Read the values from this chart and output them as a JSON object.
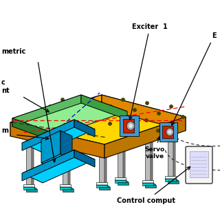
{
  "bg_color": "#ffffff",
  "labels": {
    "exciter1": "Exciter  1",
    "exciter2": "E",
    "servo_valve": "Servo\nvalve",
    "control_computer": "Control comput",
    "asymmetric": "metric",
    "ec_mount": "c\nnt",
    "frame": "m"
  },
  "colors": {
    "table_top_yellow": "#FFD700",
    "table_side_orange": "#FFA500",
    "table_side_dark": "#E08800",
    "table_left_dark": "#CC7700",
    "platform_green_top": "#90EE90",
    "platform_green_side": "#5DBB63",
    "platform_green_right": "#3DA043",
    "col_blue_light": "#00CFFF",
    "col_blue_mid": "#0099CC",
    "col_blue_dark": "#006699",
    "leg_gray": "#BBBBBB",
    "leg_dark": "#888888",
    "foot_cyan": "#00CCCC",
    "foot_white": "#E0F8F8",
    "exciter_blue": "#4499CC",
    "exciter_red": "#CC2200",
    "exciter_gray": "#AAAAAA",
    "dot_black": "#444400",
    "dot_red": "#FF0000",
    "dot_blue": "#0000CC",
    "dashed_dark": "#222222",
    "arrow_color": "#000000",
    "text_color": "#000000"
  },
  "fig_width": 3.2,
  "fig_height": 3.2,
  "dpi": 100
}
